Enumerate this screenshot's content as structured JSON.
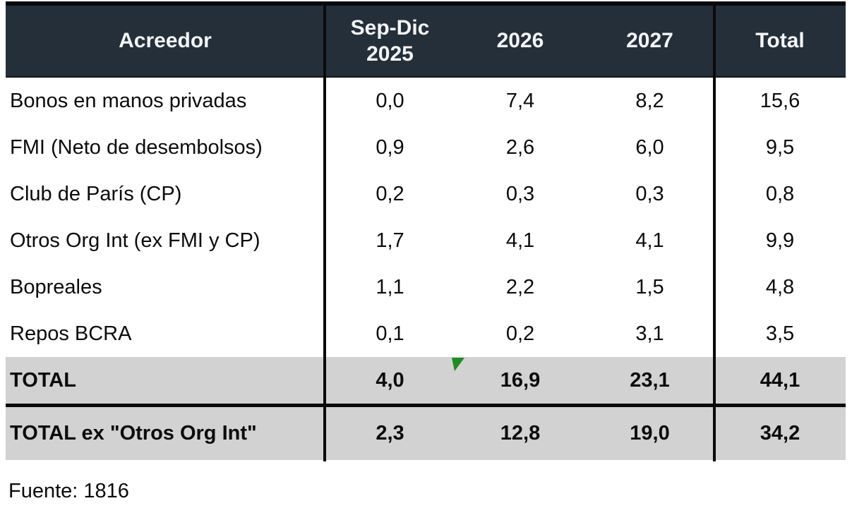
{
  "chart_data": {
    "type": "table",
    "title": "",
    "columns": [
      "Acreedor",
      "Sep-Dic\n2025",
      "2026",
      "2027",
      "Total"
    ],
    "rows": [
      {
        "label": "Bonos en manos privadas",
        "values": [
          "0,0",
          "7,4",
          "8,2",
          "15,6"
        ]
      },
      {
        "label": "FMI (Neto de desembolsos)",
        "values": [
          "0,9",
          "2,6",
          "6,0",
          "9,5"
        ]
      },
      {
        "label": "Club de París (CP)",
        "values": [
          "0,2",
          "0,3",
          "0,3",
          "0,8"
        ]
      },
      {
        "label": "Otros Org Int (ex FMI y CP)",
        "values": [
          "1,7",
          "4,1",
          "4,1",
          "9,9"
        ]
      },
      {
        "label": "Bopreales",
        "values": [
          "1,1",
          "2,2",
          "1,5",
          "4,8"
        ]
      },
      {
        "label": "Repos BCRA",
        "values": [
          "0,1",
          "0,2",
          "3,1",
          "3,5"
        ]
      }
    ],
    "totals": [
      {
        "label": "TOTAL",
        "values": [
          "4,0",
          "16,9",
          "23,1",
          "44,1"
        ]
      },
      {
        "label": "TOTAL ex \"Otros Org Int\"",
        "values": [
          "2,3",
          "12,8",
          "19,0",
          "34,2"
        ]
      }
    ],
    "layout": {
      "grid": "off",
      "value_alignment": "center",
      "decimal_separator": "comma"
    }
  },
  "footer": {
    "source": "Fuente: 1816"
  },
  "colors": {
    "header_bg": "#242f3a",
    "header_text": "#f4f6f7",
    "total_row_bg": "#d2d2d2",
    "border_black": "#0a0a0a",
    "marker_green": "#1f8b24"
  },
  "icons": {
    "green_flag_marker": "small green triangle annotation marker"
  }
}
